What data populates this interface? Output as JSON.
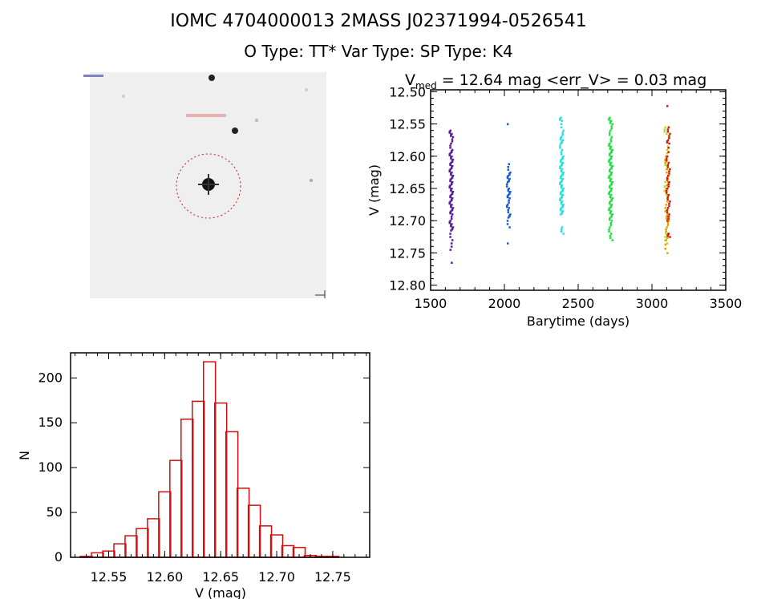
{
  "header": {
    "title": "IOMC 4704000013    2MASS J02371994-0526541",
    "subtitle": "O Type: TT*  Var Type:    SP Type: K4"
  },
  "image_panel": {
    "description_colors": {
      "background": "#f0f0f0",
      "aperture": "#d02020"
    }
  },
  "chart_data": [
    {
      "type": "scatter",
      "title_prefix": "V",
      "title_sub": "med",
      "title_rest": " = 12.64 mag <err_V> = 0.03 mag",
      "xlabel": "Barytime (days)",
      "ylabel": "V (mag)",
      "xlim": [
        1500,
        3500
      ],
      "ylim": [
        12.808,
        12.497
      ],
      "y_inverted": true,
      "xticks": [
        "1500",
        "2000",
        "2500",
        "3000",
        "3500"
      ],
      "yticks": [
        "12.50",
        "12.55",
        "12.60",
        "12.65",
        "12.70",
        "12.75",
        "12.80"
      ],
      "grid": false,
      "series": [
        {
          "color": "#5a1a9a",
          "x": 1642,
          "y": [
            12.56,
            12.565,
            12.57,
            12.58,
            12.59,
            12.595,
            12.6,
            12.605,
            12.61,
            12.615,
            12.62,
            12.625,
            12.63,
            12.635,
            12.64,
            12.645,
            12.65,
            12.655,
            12.66,
            12.665,
            12.67,
            12.675,
            12.68,
            12.685,
            12.69,
            12.7,
            12.705,
            12.71,
            12.715,
            12.73,
            12.745,
            12.765
          ]
        },
        {
          "color": "#1a5ad0",
          "x": 2030,
          "y": [
            12.55,
            12.612,
            12.625,
            12.63,
            12.635,
            12.64,
            12.65,
            12.655,
            12.66,
            12.665,
            12.675,
            12.68,
            12.69,
            12.695,
            12.71,
            12.735
          ]
        },
        {
          "color": "#20e0e0",
          "x": 2390,
          "y": [
            12.54,
            12.545,
            12.56,
            12.57,
            12.575,
            12.58,
            12.59,
            12.6,
            12.605,
            12.61,
            12.615,
            12.62,
            12.625,
            12.63,
            12.635,
            12.64,
            12.645,
            12.65,
            12.655,
            12.66,
            12.665,
            12.67,
            12.675,
            12.68,
            12.685,
            12.69,
            12.71,
            12.72
          ]
        },
        {
          "color": "#20e040",
          "x": 2722,
          "y": [
            12.54,
            12.545,
            12.55,
            12.56,
            12.57,
            12.58,
            12.585,
            12.59,
            12.595,
            12.6,
            12.605,
            12.61,
            12.615,
            12.62,
            12.625,
            12.63,
            12.635,
            12.64,
            12.645,
            12.65,
            12.655,
            12.66,
            12.665,
            12.67,
            12.675,
            12.68,
            12.685,
            12.69,
            12.695,
            12.7,
            12.71,
            12.72,
            12.73
          ]
        },
        {
          "color": "#b0e020",
          "x": 3098,
          "y": [
            12.555,
            12.565,
            12.585,
            12.6,
            12.62,
            12.64,
            12.66,
            12.69,
            12.72,
            12.735
          ]
        },
        {
          "color": "#e0a000",
          "x": 3104,
          "y": [
            12.6,
            12.615,
            12.63,
            12.645,
            12.66,
            12.675,
            12.69,
            12.7,
            12.71,
            12.72,
            12.73,
            12.75
          ]
        },
        {
          "color": "#d02000",
          "x": 3112,
          "y": [
            12.522,
            12.555,
            12.565,
            12.575,
            12.58,
            12.6,
            12.61,
            12.62,
            12.63,
            12.64,
            12.65,
            12.66,
            12.67,
            12.68,
            12.69,
            12.7,
            12.72,
            12.725
          ]
        }
      ]
    },
    {
      "type": "bar",
      "xlabel": "V (mag)",
      "ylabel": "N",
      "xlim": [
        12.516,
        12.783
      ],
      "ylim": [
        0,
        228
      ],
      "xticks": [
        "12.55",
        "12.60",
        "12.65",
        "12.70",
        "12.75"
      ],
      "yticks": [
        "0",
        "50",
        "100",
        "150",
        "200"
      ],
      "bar_color": "#d01010",
      "bin_width": 0.0107,
      "bin_centers": [
        12.53,
        12.54,
        12.55,
        12.56,
        12.57,
        12.58,
        12.59,
        12.6,
        12.61,
        12.62,
        12.63,
        12.64,
        12.65,
        12.66,
        12.67,
        12.68,
        12.69,
        12.7,
        12.71,
        12.72,
        12.73,
        12.74,
        12.75
      ],
      "values": [
        1,
        5,
        7,
        15,
        24,
        32,
        43,
        73,
        108,
        154,
        174,
        218,
        172,
        140,
        77,
        58,
        35,
        25,
        13,
        11,
        2,
        1,
        1
      ],
      "grid": false
    }
  ]
}
